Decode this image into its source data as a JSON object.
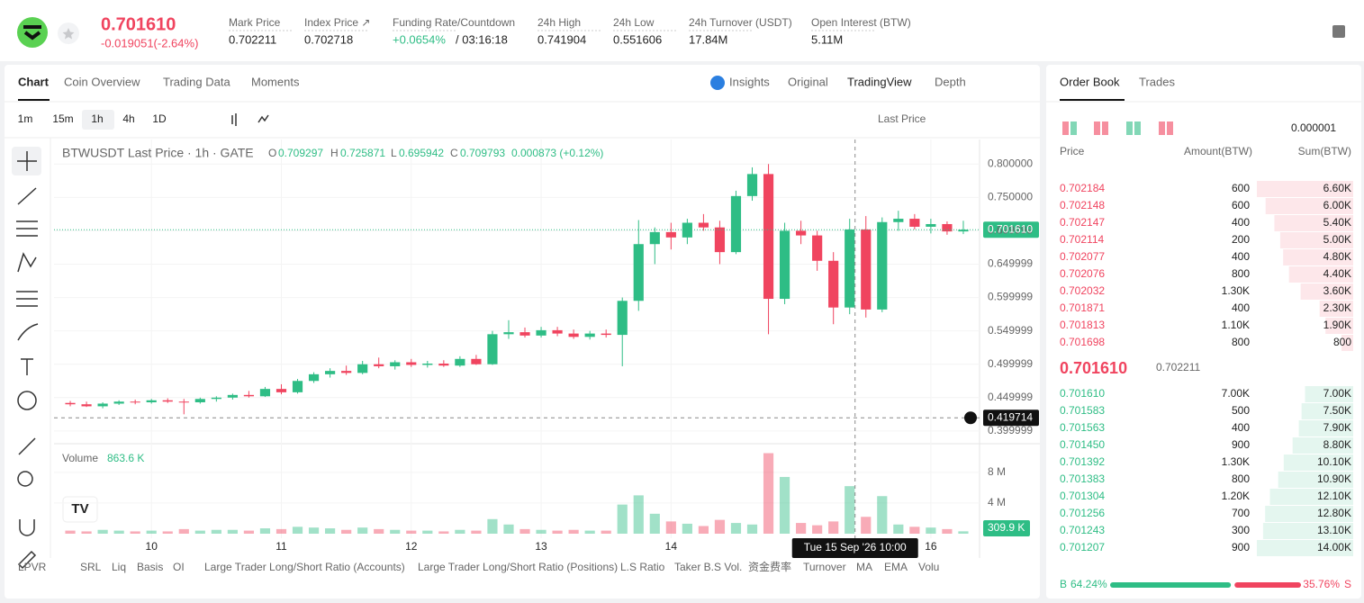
{
  "header": {
    "price": "0.701610",
    "change": "-0.019051(-2.64%)",
    "stats": [
      {
        "label": "Mark Price",
        "value": "0.702211"
      },
      {
        "label": "Index Price ↗",
        "value": "0.702718"
      },
      {
        "label": "Funding Rate/Countdown",
        "value": "+0.0654%",
        "countdown": "/ 03:16:18"
      },
      {
        "label": "24h High",
        "value": "0.741904"
      },
      {
        "label": "24h Low",
        "value": "0.551606"
      },
      {
        "label": "24h Turnover (USDT)",
        "value": "17.84M"
      },
      {
        "label": "Open Interest (BTW)",
        "value": "5.11M"
      }
    ]
  },
  "tabs": [
    "Chart",
    "Coin Overview",
    "Trading Data",
    "Moments"
  ],
  "views": [
    "Insights",
    "Original",
    "TradingView",
    "Depth"
  ],
  "timeframes": [
    "1m",
    "15m",
    "1h",
    "4h",
    "1D"
  ],
  "price_source": "Last Price",
  "indicators": [
    "LPVR",
    "SRL",
    "Liq",
    "Basis",
    "OI",
    "Large Trader Long/Short Ratio (Accounts)",
    "Large Trader Long/Short Ratio (Positions)",
    "L.S Ratio",
    "Taker B.S Vol.",
    "资金费率",
    "Turnover",
    "MA",
    "EMA",
    "Volu"
  ],
  "chart_data": {
    "type": "candlestick",
    "title": "BTWUSDT Last Price · 1h · GATE",
    "legend": {
      "o": "O",
      "open": "0.709297",
      "h": "H",
      "high": "0.725871",
      "l": "L",
      "low": "0.695942",
      "c": "C",
      "close": "0.709793",
      "change": "0.000873 (+0.12%)"
    },
    "x": [
      -15,
      -12,
      -9,
      -6,
      -3,
      0,
      3,
      6,
      9,
      12,
      15,
      18,
      21,
      24,
      27,
      30,
      33,
      36,
      39,
      42,
      45,
      48,
      51,
      54,
      57,
      60,
      63,
      66,
      69,
      72,
      75,
      78,
      81,
      84,
      87,
      90,
      93,
      96,
      99,
      102,
      105,
      108,
      111,
      114,
      117,
      120,
      123,
      126,
      129,
      132,
      135,
      138,
      141,
      144,
      147,
      150
    ],
    "open": [
      0.442,
      0.44,
      0.437,
      0.441,
      0.444,
      0.443,
      0.446,
      0.444,
      0.443,
      0.448,
      0.45,
      0.454,
      0.452,
      0.463,
      0.458,
      0.475,
      0.485,
      0.49,
      0.487,
      0.5,
      0.497,
      0.503,
      0.499,
      0.501,
      0.498,
      0.508,
      0.5,
      0.545,
      0.548,
      0.543,
      0.551,
      0.546,
      0.541,
      0.546,
      0.544,
      0.595,
      0.68,
      0.698,
      0.69,
      0.712,
      0.705,
      0.668,
      0.752,
      0.785,
      0.598,
      0.7,
      0.693,
      0.655,
      0.585,
      0.702,
      0.582,
      0.713,
      0.718,
      0.706,
      0.71,
      0.699
    ],
    "high": [
      0.445,
      0.444,
      0.443,
      0.446,
      0.447,
      0.448,
      0.449,
      0.448,
      0.45,
      0.452,
      0.456,
      0.46,
      0.466,
      0.47,
      0.478,
      0.488,
      0.494,
      0.498,
      0.505,
      0.51,
      0.506,
      0.508,
      0.505,
      0.506,
      0.512,
      0.514,
      0.55,
      0.566,
      0.555,
      0.556,
      0.556,
      0.552,
      0.55,
      0.552,
      0.6,
      0.716,
      0.705,
      0.712,
      0.718,
      0.725,
      0.715,
      0.76,
      0.795,
      0.8,
      0.712,
      0.715,
      0.7,
      0.668,
      0.718,
      0.722,
      0.72,
      0.73,
      0.725,
      0.718,
      0.714,
      0.715
    ],
    "low": [
      0.437,
      0.436,
      0.434,
      0.439,
      0.44,
      0.441,
      0.442,
      0.425,
      0.441,
      0.444,
      0.447,
      0.45,
      0.451,
      0.455,
      0.456,
      0.472,
      0.48,
      0.484,
      0.485,
      0.494,
      0.492,
      0.496,
      0.495,
      0.496,
      0.496,
      0.499,
      0.499,
      0.538,
      0.54,
      0.54,
      0.542,
      0.538,
      0.537,
      0.54,
      0.497,
      0.58,
      0.65,
      0.672,
      0.68,
      0.7,
      0.65,
      0.665,
      0.745,
      0.545,
      0.59,
      0.68,
      0.64,
      0.56,
      0.575,
      0.57,
      0.578,
      0.7,
      0.702,
      0.696,
      0.694,
      0.695
    ],
    "close": [
      0.44,
      0.437,
      0.441,
      0.444,
      0.443,
      0.446,
      0.444,
      0.443,
      0.448,
      0.45,
      0.454,
      0.452,
      0.463,
      0.458,
      0.475,
      0.485,
      0.49,
      0.487,
      0.5,
      0.497,
      0.503,
      0.499,
      0.501,
      0.498,
      0.508,
      0.5,
      0.545,
      0.548,
      0.543,
      0.551,
      0.546,
      0.541,
      0.546,
      0.544,
      0.595,
      0.68,
      0.698,
      0.69,
      0.712,
      0.705,
      0.668,
      0.752,
      0.785,
      0.598,
      0.7,
      0.693,
      0.655,
      0.585,
      0.702,
      0.582,
      0.713,
      0.718,
      0.706,
      0.71,
      0.699,
      0.70161
    ],
    "volume": [
      0.4,
      0.3,
      0.5,
      0.4,
      0.3,
      0.4,
      0.3,
      0.6,
      0.4,
      0.5,
      0.5,
      0.4,
      0.7,
      0.6,
      0.9,
      0.8,
      0.7,
      0.5,
      0.8,
      0.6,
      0.5,
      0.4,
      0.4,
      0.3,
      0.5,
      0.4,
      1.9,
      1.2,
      0.6,
      0.5,
      0.4,
      0.5,
      0.4,
      0.4,
      3.8,
      5.0,
      2.6,
      1.6,
      1.3,
      1.0,
      1.8,
      1.4,
      1.2,
      10.5,
      7.4,
      1.4,
      1.1,
      1.6,
      6.2,
      2.2,
      4.9,
      1.2,
      0.9,
      0.8,
      0.6,
      0.3099
    ],
    "up_color": "#2ebd85",
    "down_color": "#f0445f",
    "xlim": [
      -18,
      153
    ],
    "xticks": [
      {
        "value": 0,
        "label": "10"
      },
      {
        "value": 24,
        "label": "11"
      },
      {
        "value": 48,
        "label": "12"
      },
      {
        "value": 72,
        "label": "13"
      },
      {
        "value": 96,
        "label": "14"
      },
      {
        "value": 144,
        "label": "16"
      }
    ],
    "ylim": [
      0.385,
      0.83
    ],
    "yticks": [
      {
        "value": 0.8,
        "label": "0.800000"
      },
      {
        "value": 0.75,
        "label": "0.750000"
      },
      {
        "value": 0.699999,
        "label": "0.699999"
      },
      {
        "value": 0.649999,
        "label": "0.649999"
      },
      {
        "value": 0.599999,
        "label": "0.599999"
      },
      {
        "value": 0.549999,
        "label": "0.549999"
      },
      {
        "value": 0.499999,
        "label": "0.499999"
      },
      {
        "value": 0.449999,
        "label": "0.449999"
      },
      {
        "value": 0.399999,
        "label": "0.399999"
      }
    ],
    "last_price": {
      "value": 0.70161,
      "label": "0.701610"
    },
    "crosshair": {
      "x": 130,
      "x_label": "Tue 15 Sep '26   10:00",
      "y": 0.419714
    },
    "volume_title": "Volume",
    "volume_hover": "863.6 K",
    "volume_last_label": "309.9 K",
    "volume_ylim": [
      0,
      11.5
    ],
    "volume_yticks": [
      {
        "value": 4,
        "label": "4 M"
      },
      {
        "value": 8,
        "label": "8 M"
      }
    ]
  },
  "order_book": {
    "tabs": [
      "Order Book",
      "Trades"
    ],
    "precision": "0.000001",
    "columns": [
      "Price",
      "Amount(BTW)",
      "Sum(BTW)"
    ],
    "asks": [
      [
        "0.702184",
        "600",
        "6.60K"
      ],
      [
        "0.702148",
        "600",
        "6.00K"
      ],
      [
        "0.702147",
        "400",
        "5.40K"
      ],
      [
        "0.702114",
        "200",
        "5.00K"
      ],
      [
        "0.702077",
        "400",
        "4.80K"
      ],
      [
        "0.702076",
        "800",
        "4.40K"
      ],
      [
        "0.702032",
        "1.30K",
        "3.60K"
      ],
      [
        "0.701871",
        "400",
        "2.30K"
      ],
      [
        "0.701813",
        "1.10K",
        "1.90K"
      ],
      [
        "0.701698",
        "800",
        "800"
      ]
    ],
    "last": "0.701610",
    "mark": "0.702211",
    "bids": [
      [
        "0.701610",
        "7.00K",
        "7.00K"
      ],
      [
        "0.701583",
        "500",
        "7.50K"
      ],
      [
        "0.701563",
        "400",
        "7.90K"
      ],
      [
        "0.701450",
        "900",
        "8.80K"
      ],
      [
        "0.701392",
        "1.30K",
        "10.10K"
      ],
      [
        "0.701383",
        "800",
        "10.90K"
      ],
      [
        "0.701304",
        "1.20K",
        "12.10K"
      ],
      [
        "0.701256",
        "700",
        "12.80K"
      ],
      [
        "0.701243",
        "300",
        "13.10K"
      ],
      [
        "0.701207",
        "900",
        "14.00K"
      ]
    ],
    "buy": "B",
    "buy_ratio": {
      "value": 64.24,
      "label": "64.24%"
    },
    "sell_ratio": {
      "value": 35.76,
      "label": "35.76%"
    },
    "sell": "S"
  }
}
